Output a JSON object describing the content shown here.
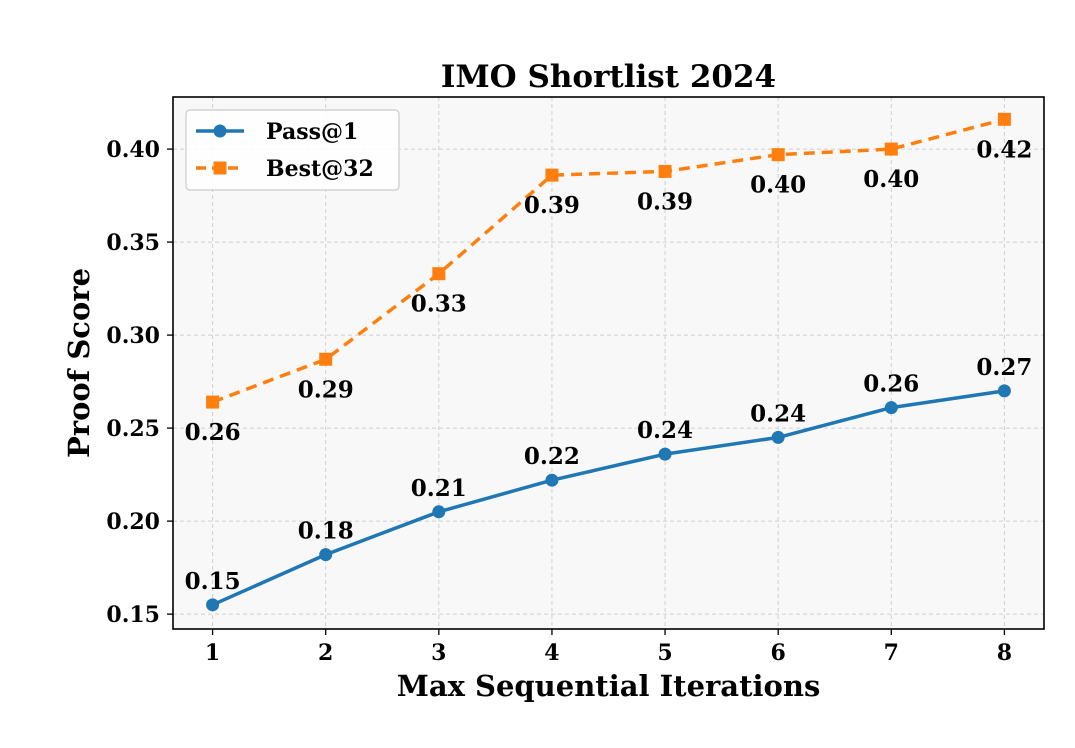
{
  "chart_data": {
    "type": "line",
    "title": "IMO Shortlist 2024",
    "xlabel": "Max Sequential Iterations",
    "ylabel": "Proof Score",
    "x": [
      1,
      2,
      3,
      4,
      5,
      6,
      7,
      8
    ],
    "xlim": [
      0.65,
      8.35
    ],
    "ylim": [
      0.142,
      0.428
    ],
    "yticks": [
      0.15,
      0.2,
      0.25,
      0.3,
      0.35,
      0.4
    ],
    "ytick_labels": [
      "0.15",
      "0.20",
      "0.25",
      "0.30",
      "0.35",
      "0.40"
    ],
    "xtick_labels": [
      "1",
      "2",
      "3",
      "4",
      "5",
      "6",
      "7",
      "8"
    ],
    "grid": true,
    "legend_position": "top-left",
    "series": [
      {
        "name": "Pass@1",
        "color": "#1f77b4",
        "line_style": "solid",
        "marker": "circle",
        "values": [
          0.155,
          0.182,
          0.205,
          0.222,
          0.236,
          0.245,
          0.261,
          0.27
        ],
        "labels": [
          "0.15",
          "0.18",
          "0.21",
          "0.22",
          "0.24",
          "0.24",
          "0.26",
          "0.27"
        ],
        "label_position": "above"
      },
      {
        "name": "Best@32",
        "color": "#ff7f0e",
        "line_style": "dashed",
        "marker": "square",
        "values": [
          0.264,
          0.287,
          0.333,
          0.386,
          0.388,
          0.397,
          0.4,
          0.416
        ],
        "labels": [
          "0.26",
          "0.29",
          "0.33",
          "0.39",
          "0.39",
          "0.40",
          "0.40",
          "0.42"
        ],
        "label_position": "below"
      }
    ]
  }
}
